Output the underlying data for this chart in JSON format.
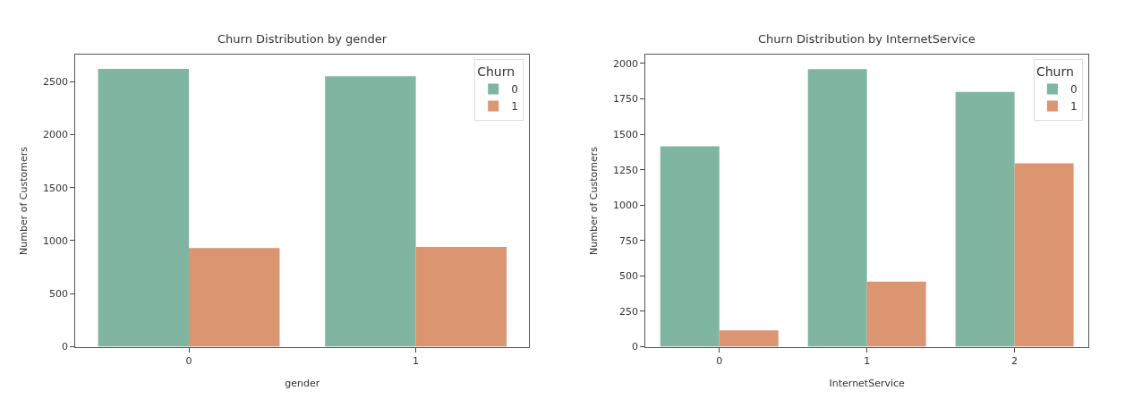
{
  "chart_data": [
    {
      "type": "bar",
      "title": "Churn Distribution by gender",
      "xlabel": "gender",
      "ylabel": "Number of Customers",
      "categories": [
        "0",
        "1"
      ],
      "legend_title": "Churn",
      "legend": "top right",
      "ylim": [
        0,
        2750
      ],
      "yticks": [
        0,
        500,
        1000,
        1500,
        2000,
        2500
      ],
      "series": [
        {
          "name": "0",
          "color": "#7fb5a1",
          "values": [
            2620,
            2550
          ]
        },
        {
          "name": "1",
          "color": "#db9671",
          "values": [
            930,
            940
          ]
        }
      ]
    },
    {
      "type": "bar",
      "title": "Churn Distribution by InternetService",
      "xlabel": "InternetService",
      "ylabel": "Number of Customers",
      "categories": [
        "0",
        "1",
        "2"
      ],
      "legend_title": "Churn",
      "legend": "top right",
      "ylim": [
        0,
        2060
      ],
      "yticks": [
        0,
        250,
        500,
        750,
        1000,
        1250,
        1500,
        1750,
        2000
      ],
      "series": [
        {
          "name": "0",
          "color": "#7fb5a1",
          "values": [
            1415,
            1960,
            1800
          ]
        },
        {
          "name": "1",
          "color": "#db9671",
          "values": [
            115,
            460,
            1295
          ]
        }
      ]
    }
  ]
}
